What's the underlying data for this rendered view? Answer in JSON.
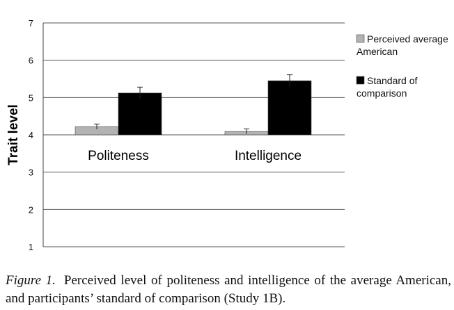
{
  "chart_data": {
    "type": "bar",
    "title": "",
    "xlabel": "",
    "ylabel": "Trait level",
    "ylim": [
      1,
      7
    ],
    "yticks": [
      "1",
      "2",
      "3",
      "4",
      "5",
      "6",
      "7"
    ],
    "baseline": 4,
    "grid": true,
    "legend_position": "right",
    "categories": [
      "Politeness",
      "Intelligence"
    ],
    "series": [
      {
        "name": "Perceived average American",
        "color": "#b3b3b3",
        "values": [
          4.22,
          4.09
        ],
        "errors": [
          0.07,
          0.07
        ]
      },
      {
        "name": "Standard of comparison",
        "color": "#000000",
        "values": [
          5.12,
          5.45
        ],
        "errors": [
          0.16,
          0.16
        ]
      }
    ]
  },
  "legend": {
    "series_0": {
      "line1": "Perceived average",
      "line2": "American"
    },
    "series_1": {
      "line1": "Standard of",
      "line2": "comparison"
    }
  },
  "caption": {
    "label": "Figure 1.",
    "text": "Perceived level of politeness and intelligence of the average American, and participants’ standard of comparison (Study 1B)."
  }
}
